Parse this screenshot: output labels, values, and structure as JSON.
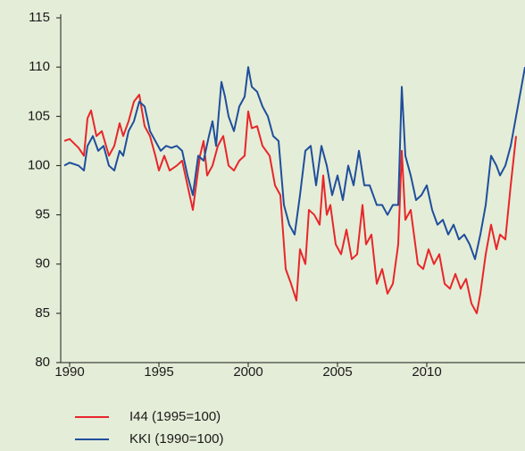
{
  "chart_data": {
    "type": "line",
    "xlim": [
      1989.5,
      2015.5
    ],
    "xticks": [
      1990,
      1995,
      2000,
      2005,
      2010
    ],
    "ylim": [
      80,
      115
    ],
    "yticks": [
      80,
      85,
      90,
      95,
      100,
      105,
      110,
      115
    ],
    "series": [
      {
        "name": "I44 (1995=100)",
        "color": "#e8262b",
        "x": [
          1989.7,
          1990,
          1990.5,
          1990.8,
          1991.0,
          1991.2,
          1991.5,
          1991.8,
          1992.2,
          1992.5,
          1992.8,
          1993.0,
          1993.3,
          1993.6,
          1993.9,
          1994.2,
          1994.5,
          1994.8,
          1995.0,
          1995.3,
          1995.6,
          1996.0,
          1996.3,
          1996.6,
          1996.9,
          1997.3,
          1997.5,
          1997.7,
          1998.0,
          1998.3,
          1998.6,
          1998.9,
          1999.2,
          1999.5,
          1999.8,
          2000.0,
          2000.2,
          2000.5,
          2000.8,
          2001.2,
          2001.5,
          2001.8,
          2002.1,
          2002.4,
          2002.7,
          2002.9,
          2003.2,
          2003.4,
          2003.7,
          2004.0,
          2004.2,
          2004.4,
          2004.6,
          2004.9,
          2005.2,
          2005.5,
          2005.8,
          2006.1,
          2006.4,
          2006.6,
          2006.9,
          2007.2,
          2007.5,
          2007.8,
          2008.1,
          2008.4,
          2008.6,
          2008.8,
          2009.1,
          2009.5,
          2009.8,
          2010.1,
          2010.4,
          2010.7,
          2011.0,
          2011.3,
          2011.6,
          2011.9,
          2012.2,
          2012.5,
          2012.8,
          2013.0,
          2013.3,
          2013.6,
          2013.9,
          2014.1,
          2014.4,
          2014.7,
          2015.0
        ],
        "values": [
          102.5,
          102.7,
          101.8,
          101,
          104.8,
          105.6,
          103,
          103.5,
          101,
          102,
          104.3,
          103,
          104.5,
          106.5,
          107.2,
          104,
          103,
          101,
          99.5,
          101,
          99.5,
          100,
          100.5,
          98,
          95.5,
          101,
          102.5,
          99,
          100,
          102,
          103,
          100,
          99.5,
          100.5,
          101,
          105.5,
          103.8,
          104,
          102,
          101,
          98,
          97,
          89.5,
          88,
          86.3,
          91.5,
          90,
          95.5,
          95,
          94,
          99,
          95,
          96,
          92,
          91,
          93.5,
          90.5,
          91,
          96,
          92,
          93,
          88,
          89.5,
          87,
          88,
          92,
          101.5,
          94.5,
          95.5,
          90,
          89.5,
          91.5,
          90,
          91,
          88,
          87.5,
          89,
          87.5,
          88.5,
          86,
          85,
          87,
          91,
          94,
          91.5,
          93,
          92.5,
          98,
          103
        ]
      },
      {
        "name": "KKI (1990=100)",
        "color": "#1f4e9c",
        "x": [
          1989.7,
          1990,
          1990.5,
          1990.8,
          1991.0,
          1991.3,
          1991.6,
          1991.9,
          1992.2,
          1992.5,
          1992.8,
          1993.0,
          1993.3,
          1993.6,
          1993.9,
          1994.2,
          1994.5,
          1994.8,
          1995.1,
          1995.4,
          1995.7,
          1996.0,
          1996.3,
          1996.6,
          1996.9,
          1997.2,
          1997.5,
          1997.8,
          1998.0,
          1998.2,
          1998.5,
          1998.7,
          1998.9,
          1999.2,
          1999.5,
          1999.8,
          2000.0,
          2000.2,
          2000.5,
          2000.8,
          2001.1,
          2001.4,
          2001.7,
          2002.0,
          2002.3,
          2002.6,
          2002.9,
          2003.2,
          2003.5,
          2003.8,
          2004.1,
          2004.4,
          2004.7,
          2005.0,
          2005.3,
          2005.6,
          2005.9,
          2006.2,
          2006.5,
          2006.8,
          2007.2,
          2007.5,
          2007.8,
          2008.1,
          2008.4,
          2008.6,
          2008.8,
          2009.1,
          2009.4,
          2009.7,
          2010.0,
          2010.3,
          2010.6,
          2010.9,
          2011.2,
          2011.5,
          2011.8,
          2012.1,
          2012.4,
          2012.7,
          2013.0,
          2013.3,
          2013.6,
          2013.9,
          2014.1,
          2014.4,
          2014.7,
          2015.0,
          2015.5
        ],
        "values": [
          100,
          100.3,
          100,
          99.5,
          102,
          103,
          101.5,
          102,
          100,
          99.5,
          101.5,
          101,
          103.5,
          104.5,
          106.5,
          106,
          103.5,
          102.5,
          101.5,
          102,
          101.8,
          102,
          101.5,
          99,
          97,
          101,
          100.5,
          103,
          104.5,
          102,
          108.5,
          107,
          105,
          103.5,
          106,
          107,
          110,
          108,
          107.5,
          106,
          105,
          103,
          102.5,
          96,
          94,
          93,
          97,
          101.5,
          102,
          98,
          102,
          100,
          97,
          99,
          96.5,
          100,
          98,
          101.5,
          98,
          98,
          96,
          96,
          95,
          96,
          96,
          108,
          101,
          99,
          96.5,
          97,
          98,
          95.5,
          94,
          94.5,
          93,
          94,
          92.5,
          93,
          92,
          90.5,
          93,
          96,
          101,
          100,
          99,
          100,
          102,
          105,
          110
        ]
      }
    ]
  }
}
